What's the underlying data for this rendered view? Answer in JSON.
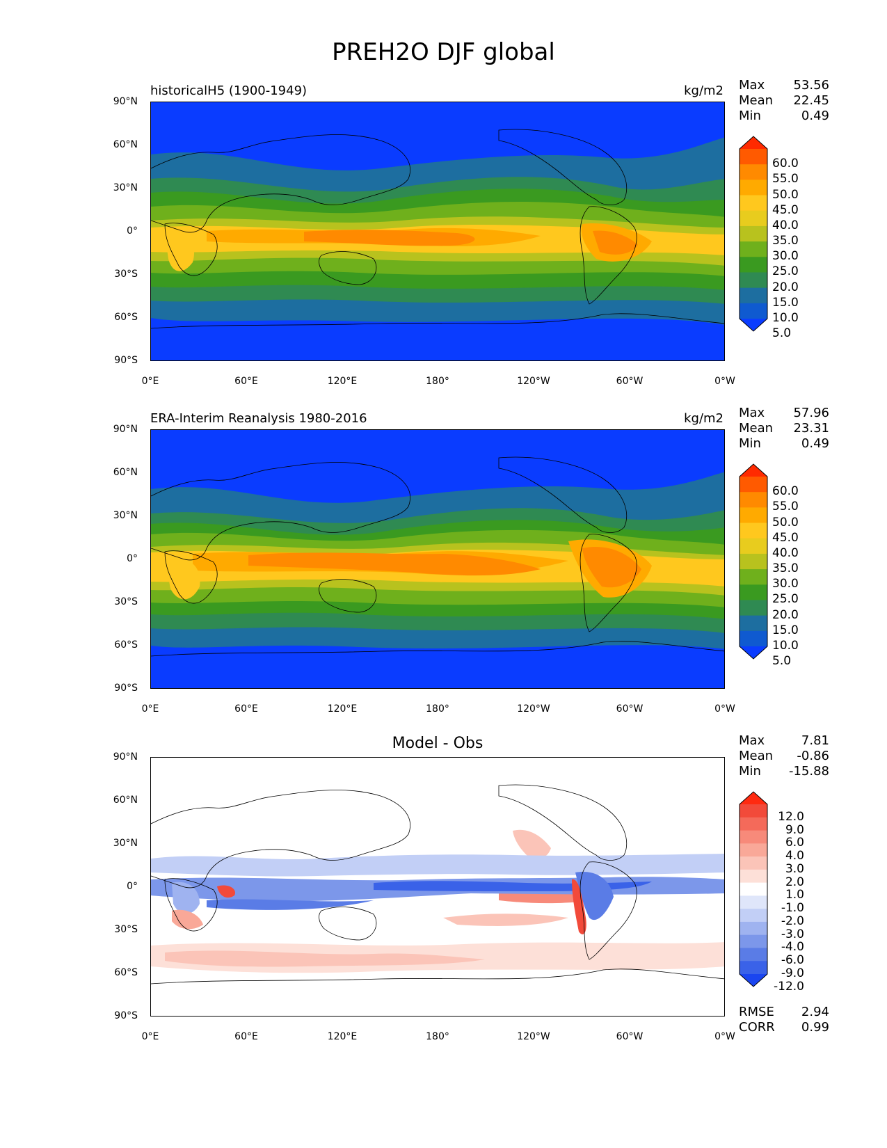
{
  "figure_title": "PREH2O DJF global",
  "x_ticks": [
    "0°E",
    "60°E",
    "120°E",
    "180°",
    "120°W",
    "60°W",
    "0°W"
  ],
  "y_ticks": [
    "90°N",
    "60°N",
    "30°N",
    "0°",
    "30°S",
    "60°S",
    "90°S"
  ],
  "panels": [
    {
      "title": "historicalH5 (1900-1949)",
      "units": "kg/m2",
      "stats": [
        {
          "label": "Max",
          "value": "53.56"
        },
        {
          "label": "Mean",
          "value": "22.45"
        },
        {
          "label": "Min",
          "value": "0.49"
        }
      ],
      "colorbar": {
        "labels": [
          "60.0",
          "55.0",
          "50.0",
          "45.0",
          "40.0",
          "35.0",
          "30.0",
          "25.0",
          "20.0",
          "15.0",
          "10.0",
          "5.0"
        ],
        "colors": [
          "#ff2a00",
          "#ff5a00",
          "#ff8a00",
          "#ffaa00",
          "#ffc81e",
          "#e8cc1e",
          "#b8c21e",
          "#6fb01c",
          "#3a9a20",
          "#2f8a52",
          "#1d6ea0",
          "#0f5ad0",
          "#0a3cff"
        ]
      }
    },
    {
      "title": "ERA-Interim Reanalysis 1980-2016",
      "units": "kg/m2",
      "stats": [
        {
          "label": "Max",
          "value": "57.96"
        },
        {
          "label": "Mean",
          "value": "23.31"
        },
        {
          "label": "Min",
          "value": "0.49"
        }
      ],
      "colorbar": {
        "labels": [
          "60.0",
          "55.0",
          "50.0",
          "45.0",
          "40.0",
          "35.0",
          "30.0",
          "25.0",
          "20.0",
          "15.0",
          "10.0",
          "5.0"
        ],
        "colors": [
          "#ff2a00",
          "#ff5a00",
          "#ff8a00",
          "#ffaa00",
          "#ffc81e",
          "#e8cc1e",
          "#b8c21e",
          "#6fb01c",
          "#3a9a20",
          "#2f8a52",
          "#1d6ea0",
          "#0f5ad0",
          "#0a3cff"
        ]
      }
    },
    {
      "title": "Model - Obs",
      "units": "",
      "stats": [
        {
          "label": "Max",
          "value": "7.81"
        },
        {
          "label": "Mean",
          "value": "-0.86"
        },
        {
          "label": "Min",
          "value": "-15.88"
        }
      ],
      "colorbar": {
        "labels": [
          "12.0",
          "9.0",
          "6.0",
          "4.0",
          "3.0",
          "2.0",
          "1.0",
          "-1.0",
          "-2.0",
          "-3.0",
          "-4.0",
          "-6.0",
          "-9.0",
          "-12.0"
        ],
        "colors": [
          "#ff2a10",
          "#f24a3a",
          "#f46a5a",
          "#f78a7a",
          "#f9a898",
          "#fbc4b8",
          "#fde0d8",
          "#ffffff",
          "#dfe6fa",
          "#c2cff6",
          "#9fb3f0",
          "#7c97ea",
          "#5a7ce6",
          "#3a62e8",
          "#1a45f0"
        ]
      },
      "bottom_stats": [
        {
          "label": "RMSE",
          "value": "2.94"
        },
        {
          "label": "CORR",
          "value": "0.99"
        }
      ]
    }
  ]
}
